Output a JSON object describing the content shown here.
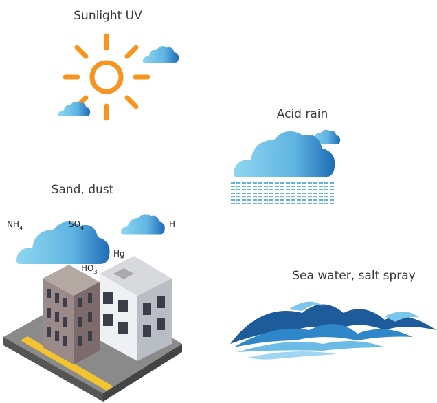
{
  "labels": {
    "sunlight": "Sunlight UV",
    "acid_rain": "Acid rain",
    "sand_dust": "Sand, dust",
    "sea_water": "Sea water, salt spray"
  },
  "pollutants": [
    {
      "text": "NH",
      "sub": "4"
    },
    {
      "text": "SO",
      "sub": "4"
    },
    {
      "text": "H"
    },
    {
      "text": "Hg"
    },
    {
      "text": "HO",
      "sub": "3"
    }
  ]
}
